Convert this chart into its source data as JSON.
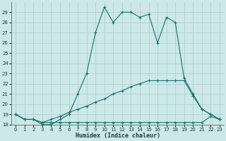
{
  "xlabel": "Humidex (Indice chaleur)",
  "background_color": "#cce8e8",
  "grid_color": "#aacccc",
  "line_color": "#1a6e6e",
  "x": [
    0,
    1,
    2,
    3,
    4,
    5,
    6,
    7,
    8,
    9,
    10,
    11,
    12,
    13,
    14,
    15,
    16,
    17,
    18,
    19,
    20,
    21,
    22,
    23
  ],
  "series1": [
    19,
    18.5,
    18.5,
    18,
    18,
    18.5,
    19,
    21,
    23,
    27,
    29.5,
    28,
    29,
    29,
    28.5,
    28.8,
    26,
    28.5,
    28,
    22.5,
    21,
    19.5,
    19,
    18.5
  ],
  "series2": [
    19,
    18.5,
    18.5,
    18.2,
    18.2,
    18.2,
    18.2,
    18.2,
    18.2,
    18.2,
    18.2,
    18.2,
    18.2,
    18.2,
    18.2,
    18.2,
    18.2,
    18.2,
    18.2,
    18.2,
    18.2,
    18.2,
    18.8,
    18.5
  ],
  "series3": [
    19,
    18.5,
    18.5,
    18.2,
    18.5,
    18.8,
    19.2,
    19.5,
    19.8,
    20.2,
    20.5,
    21,
    21.3,
    21.7,
    22,
    22.3,
    22.3,
    22.3,
    22.3,
    22.3,
    20.8,
    19.5,
    19,
    18.5
  ],
  "ylim": [
    18,
    30
  ],
  "xlim": [
    -0.5,
    23.5
  ],
  "yticks": [
    18,
    19,
    20,
    21,
    22,
    23,
    24,
    25,
    26,
    27,
    28,
    29
  ],
  "xticks": [
    0,
    1,
    2,
    3,
    4,
    5,
    6,
    7,
    8,
    9,
    10,
    11,
    12,
    13,
    14,
    15,
    16,
    17,
    18,
    19,
    20,
    21,
    22,
    23
  ]
}
